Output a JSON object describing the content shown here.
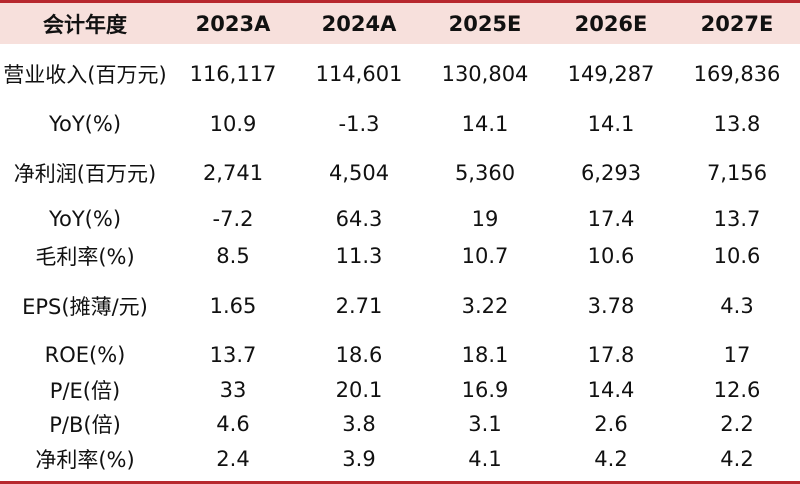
{
  "header": [
    "会计年度",
    "2023A",
    "2024A",
    "2025E",
    "2026E",
    "2027E"
  ],
  "rows": [
    [
      "营业收入(百万元)",
      "116,117",
      "114,601",
      "130,804",
      "149,287",
      "169,836"
    ],
    [
      "YoY(%)",
      "10.9",
      "-1.3",
      "14.1",
      "14.1",
      "13.8"
    ],
    [
      "净利润(百万元)",
      "2,741",
      "4,504",
      "5,360",
      "6,293",
      "7,156"
    ],
    [
      "YoY(%)",
      "-7.2",
      "64.3",
      "19",
      "17.4",
      "13.7"
    ],
    [
      "毛利率(%)",
      "8.5",
      "11.3",
      "10.7",
      "10.6",
      "10.6"
    ],
    [
      "EPS(摊薄/元)",
      "1.65",
      "2.71",
      "3.22",
      "3.78",
      "4.3"
    ],
    [
      "ROE(%)",
      "13.7",
      "18.6",
      "18.1",
      "17.8",
      "17"
    ],
    [
      "P/E(倍)",
      "33",
      "20.1",
      "16.9",
      "14.4",
      "12.6"
    ],
    [
      "P/B(倍)",
      "4.6",
      "3.8",
      "3.1",
      "2.6",
      "2.2"
    ],
    [
      "净利率(%)",
      "2.4",
      "3.9",
      "4.1",
      "4.2",
      "4.2"
    ]
  ],
  "colors": {
    "accent": "#b7282e",
    "header_bg": "#f7e0dc"
  }
}
